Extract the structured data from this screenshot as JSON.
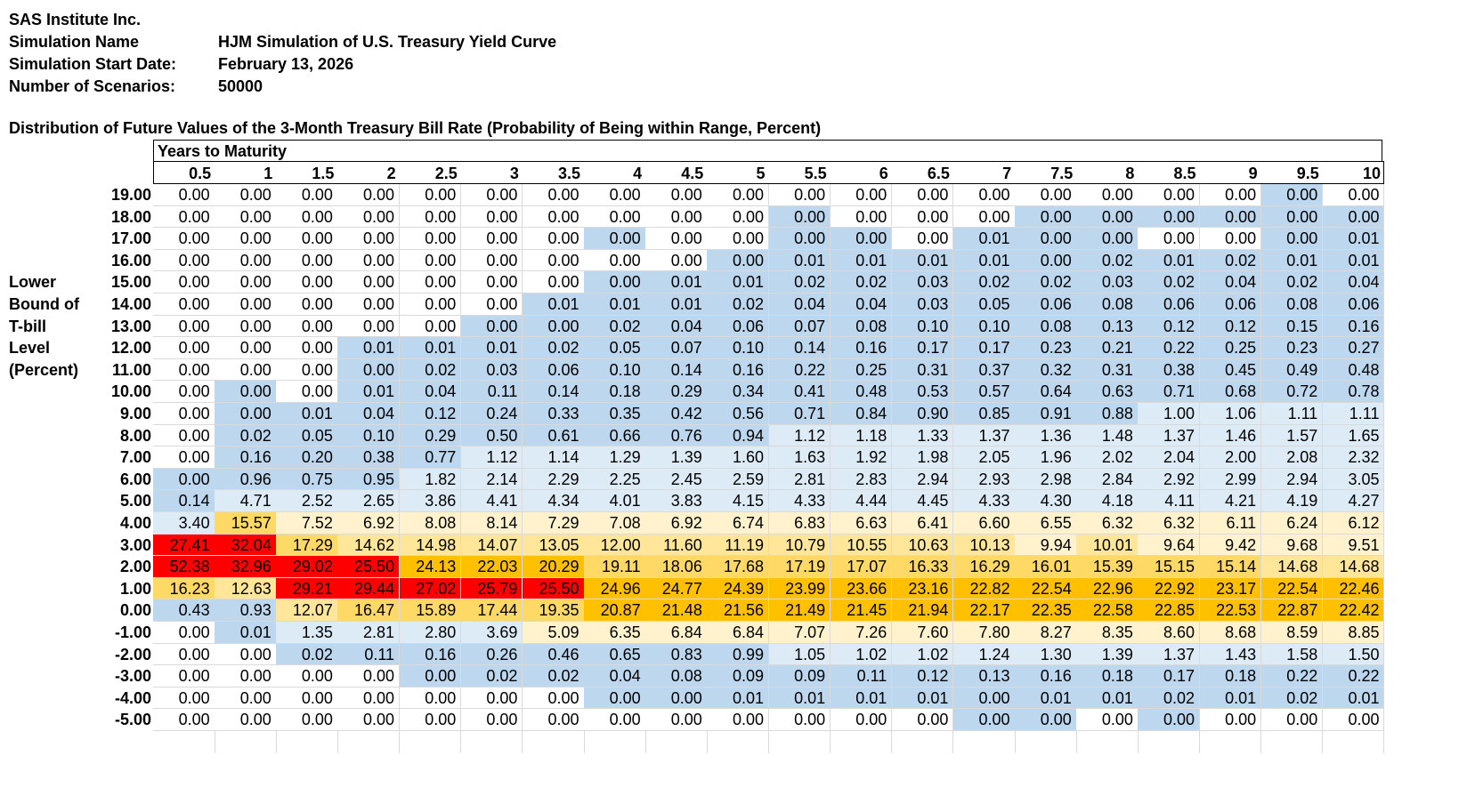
{
  "header": {
    "company": "SAS Institute Inc.",
    "fields": [
      {
        "label": "Simulation Name",
        "value": "HJM Simulation of U.S. Treasury Yield Curve"
      },
      {
        "label": "Simulation Start Date:",
        "value": "February 13, 2026"
      },
      {
        "label": "Number of Scenarios:",
        "value": "50000"
      }
    ]
  },
  "table": {
    "title": "Distribution of Future Values of the 3-Month Treasury Bill Rate (Probability of Being within Range, Percent)",
    "column_group_label": "Years to Maturity",
    "row_axis_label": [
      "Lower",
      "Bound of",
      "T-bill",
      "Level",
      "(Percent)"
    ],
    "columns": [
      "0.5",
      "1",
      "1.5",
      "2",
      "2.5",
      "3",
      "3.5",
      "4",
      "4.5",
      "5",
      "5.5",
      "6",
      "6.5",
      "7",
      "7.5",
      "8",
      "8.5",
      "9",
      "9.5",
      "10"
    ],
    "color_legend": {
      "W": "#ffffff",
      "B": "#bdd7ee",
      "P": "#ddebf7",
      "Y": "#fff2cc",
      "H": "#ffe699",
      "G": "#ffd966",
      "O": "#ffc000",
      "R": "#ff0000"
    },
    "rows": [
      {
        "label": "19.00",
        "values": [
          "0.00",
          "0.00",
          "0.00",
          "0.00",
          "0.00",
          "0.00",
          "0.00",
          "0.00",
          "0.00",
          "0.00",
          "0.00",
          "0.00",
          "0.00",
          "0.00",
          "0.00",
          "0.00",
          "0.00",
          "0.00",
          "0.00",
          "0.00"
        ],
        "colors": "WWWWWWWWWWWWWWWWWWBW"
      },
      {
        "label": "18.00",
        "values": [
          "0.00",
          "0.00",
          "0.00",
          "0.00",
          "0.00",
          "0.00",
          "0.00",
          "0.00",
          "0.00",
          "0.00",
          "0.00",
          "0.00",
          "0.00",
          "0.00",
          "0.00",
          "0.00",
          "0.00",
          "0.00",
          "0.00",
          "0.00"
        ],
        "colors": "WWWWWWWWWWBWWWBBBBBB"
      },
      {
        "label": "17.00",
        "values": [
          "0.00",
          "0.00",
          "0.00",
          "0.00",
          "0.00",
          "0.00",
          "0.00",
          "0.00",
          "0.00",
          "0.00",
          "0.00",
          "0.00",
          "0.00",
          "0.01",
          "0.00",
          "0.00",
          "0.00",
          "0.00",
          "0.00",
          "0.01"
        ],
        "colors": "WWWWWWWBWWBBWBBBWWBB"
      },
      {
        "label": "16.00",
        "values": [
          "0.00",
          "0.00",
          "0.00",
          "0.00",
          "0.00",
          "0.00",
          "0.00",
          "0.00",
          "0.00",
          "0.00",
          "0.01",
          "0.01",
          "0.01",
          "0.01",
          "0.00",
          "0.02",
          "0.01",
          "0.02",
          "0.01",
          "0.01"
        ],
        "colors": "WWWWWWWWWBBBBBBBBBBB"
      },
      {
        "label": "15.00",
        "values": [
          "0.00",
          "0.00",
          "0.00",
          "0.00",
          "0.00",
          "0.00",
          "0.00",
          "0.00",
          "0.01",
          "0.01",
          "0.02",
          "0.02",
          "0.03",
          "0.02",
          "0.02",
          "0.03",
          "0.02",
          "0.04",
          "0.02",
          "0.04"
        ],
        "colors": "WWWWWWWBBBBBBBBBBBBB"
      },
      {
        "label": "14.00",
        "values": [
          "0.00",
          "0.00",
          "0.00",
          "0.00",
          "0.00",
          "0.00",
          "0.01",
          "0.01",
          "0.01",
          "0.02",
          "0.04",
          "0.04",
          "0.03",
          "0.05",
          "0.06",
          "0.08",
          "0.06",
          "0.06",
          "0.08",
          "0.06"
        ],
        "colors": "WWWWWWBBBBBBBBBBBBBB"
      },
      {
        "label": "13.00",
        "values": [
          "0.00",
          "0.00",
          "0.00",
          "0.00",
          "0.00",
          "0.00",
          "0.00",
          "0.02",
          "0.04",
          "0.06",
          "0.07",
          "0.08",
          "0.10",
          "0.10",
          "0.08",
          "0.13",
          "0.12",
          "0.12",
          "0.15",
          "0.16"
        ],
        "colors": "WWWWWBBBBBBBBBBBBBBB"
      },
      {
        "label": "12.00",
        "values": [
          "0.00",
          "0.00",
          "0.00",
          "0.01",
          "0.01",
          "0.01",
          "0.02",
          "0.05",
          "0.07",
          "0.10",
          "0.14",
          "0.16",
          "0.17",
          "0.17",
          "0.23",
          "0.21",
          "0.22",
          "0.25",
          "0.23",
          "0.27"
        ],
        "colors": "WWWBBBBBBBBBBBBBBBBB"
      },
      {
        "label": "11.00",
        "values": [
          "0.00",
          "0.00",
          "0.00",
          "0.00",
          "0.02",
          "0.03",
          "0.06",
          "0.10",
          "0.14",
          "0.16",
          "0.22",
          "0.25",
          "0.31",
          "0.37",
          "0.32",
          "0.31",
          "0.38",
          "0.45",
          "0.49",
          "0.48"
        ],
        "colors": "WWWBBBBBBBBBBBBBBBBB"
      },
      {
        "label": "10.00",
        "values": [
          "0.00",
          "0.00",
          "0.00",
          "0.01",
          "0.04",
          "0.11",
          "0.14",
          "0.18",
          "0.29",
          "0.34",
          "0.41",
          "0.48",
          "0.53",
          "0.57",
          "0.64",
          "0.63",
          "0.71",
          "0.68",
          "0.72",
          "0.78"
        ],
        "colors": "WBWBBBBBBBBBBBBBBBBB"
      },
      {
        "label": "9.00",
        "values": [
          "0.00",
          "0.00",
          "0.01",
          "0.04",
          "0.12",
          "0.24",
          "0.33",
          "0.35",
          "0.42",
          "0.56",
          "0.71",
          "0.84",
          "0.90",
          "0.85",
          "0.91",
          "0.88",
          "1.00",
          "1.06",
          "1.11",
          "1.11"
        ],
        "colors": "WBBBBBBBBBBBBBBBPPPP"
      },
      {
        "label": "8.00",
        "values": [
          "0.00",
          "0.02",
          "0.05",
          "0.10",
          "0.29",
          "0.50",
          "0.61",
          "0.66",
          "0.76",
          "0.94",
          "1.12",
          "1.18",
          "1.33",
          "1.37",
          "1.36",
          "1.48",
          "1.37",
          "1.46",
          "1.57",
          "1.65"
        ],
        "colors": "WBBBBBBBBBPPPPPPPPPP"
      },
      {
        "label": "7.00",
        "values": [
          "0.00",
          "0.16",
          "0.20",
          "0.38",
          "0.77",
          "1.12",
          "1.14",
          "1.29",
          "1.39",
          "1.60",
          "1.63",
          "1.92",
          "1.98",
          "2.05",
          "1.96",
          "2.02",
          "2.04",
          "2.00",
          "2.08",
          "2.32"
        ],
        "colors": "WBBBBPPPPPPPPPPPPPPP"
      },
      {
        "label": "6.00",
        "values": [
          "0.00",
          "0.96",
          "0.75",
          "0.95",
          "1.82",
          "2.14",
          "2.29",
          "2.25",
          "2.45",
          "2.59",
          "2.81",
          "2.83",
          "2.94",
          "2.93",
          "2.98",
          "2.84",
          "2.92",
          "2.99",
          "2.94",
          "3.05"
        ],
        "colors": "BBBBPPPPPPPPPPPPPPPP"
      },
      {
        "label": "5.00",
        "values": [
          "0.14",
          "4.71",
          "2.52",
          "2.65",
          "3.86",
          "4.41",
          "4.34",
          "4.01",
          "3.83",
          "4.15",
          "4.33",
          "4.44",
          "4.45",
          "4.33",
          "4.30",
          "4.18",
          "4.11",
          "4.21",
          "4.19",
          "4.27"
        ],
        "colors": "BPPPPPPPPPPPPPPPPPPP"
      },
      {
        "label": "4.00",
        "values": [
          "3.40",
          "15.57",
          "7.52",
          "6.92",
          "8.08",
          "8.14",
          "7.29",
          "7.08",
          "6.92",
          "6.74",
          "6.83",
          "6.63",
          "6.41",
          "6.60",
          "6.55",
          "6.32",
          "6.32",
          "6.11",
          "6.24",
          "6.12"
        ],
        "colors": "PGYYYYYYYYYYYYYYYYYY"
      },
      {
        "label": "3.00",
        "values": [
          "27.41",
          "32.04",
          "17.29",
          "14.62",
          "14.98",
          "14.07",
          "13.05",
          "12.00",
          "11.60",
          "11.19",
          "10.79",
          "10.55",
          "10.63",
          "10.13",
          "9.94",
          "10.01",
          "9.64",
          "9.42",
          "9.68",
          "9.51"
        ],
        "colors": "RRGHHHHHHHHHHHYHYYYY"
      },
      {
        "label": "2.00",
        "values": [
          "52.38",
          "32.96",
          "29.02",
          "25.50",
          "24.13",
          "22.03",
          "20.29",
          "19.11",
          "18.06",
          "17.68",
          "17.19",
          "17.07",
          "16.33",
          "16.29",
          "16.01",
          "15.39",
          "15.15",
          "15.14",
          "14.68",
          "14.68"
        ],
        "colors": "RRRROOOGGGGGGGGGGGHH"
      },
      {
        "label": "1.00",
        "values": [
          "16.23",
          "12.63",
          "29.21",
          "29.44",
          "27.02",
          "25.79",
          "25.50",
          "24.96",
          "24.77",
          "24.39",
          "23.99",
          "23.66",
          "23.16",
          "22.82",
          "22.54",
          "22.96",
          "22.92",
          "23.17",
          "22.54",
          "22.46"
        ],
        "colors": "GHRRRRROOOOOOOOOOOOO"
      },
      {
        "label": "0.00",
        "values": [
          "0.43",
          "0.93",
          "12.07",
          "16.47",
          "15.89",
          "17.44",
          "19.35",
          "20.87",
          "21.48",
          "21.56",
          "21.49",
          "21.45",
          "21.94",
          "22.17",
          "22.35",
          "22.58",
          "22.85",
          "22.53",
          "22.87",
          "22.42"
        ],
        "colors": "BBHGGGGOOOOOOOOOOOOO"
      },
      {
        "label": "-1.00",
        "values": [
          "0.00",
          "0.01",
          "1.35",
          "2.81",
          "2.80",
          "3.69",
          "5.09",
          "6.35",
          "6.84",
          "6.84",
          "7.07",
          "7.26",
          "7.60",
          "7.80",
          "8.27",
          "8.35",
          "8.60",
          "8.68",
          "8.59",
          "8.85"
        ],
        "colors": "WBPPPPYYYYYYYYYYYYYY"
      },
      {
        "label": "-2.00",
        "values": [
          "0.00",
          "0.00",
          "0.02",
          "0.11",
          "0.16",
          "0.26",
          "0.46",
          "0.65",
          "0.83",
          "0.99",
          "1.05",
          "1.02",
          "1.02",
          "1.24",
          "1.30",
          "1.39",
          "1.37",
          "1.43",
          "1.58",
          "1.50"
        ],
        "colors": "WWBBBBBBBBPPPPPPPPPP"
      },
      {
        "label": "-3.00",
        "values": [
          "0.00",
          "0.00",
          "0.00",
          "0.00",
          "0.00",
          "0.02",
          "0.02",
          "0.04",
          "0.08",
          "0.09",
          "0.09",
          "0.11",
          "0.12",
          "0.13",
          "0.16",
          "0.18",
          "0.17",
          "0.18",
          "0.22",
          "0.22"
        ],
        "colors": "WWWWBBBBBBBBBBBBBBBB"
      },
      {
        "label": "-4.00",
        "values": [
          "0.00",
          "0.00",
          "0.00",
          "0.00",
          "0.00",
          "0.00",
          "0.00",
          "0.00",
          "0.00",
          "0.01",
          "0.01",
          "0.01",
          "0.01",
          "0.00",
          "0.01",
          "0.01",
          "0.02",
          "0.01",
          "0.02",
          "0.01"
        ],
        "colors": "WWWWWWWBBBBBBBBBBBBB"
      },
      {
        "label": "-5.00",
        "values": [
          "0.00",
          "0.00",
          "0.00",
          "0.00",
          "0.00",
          "0.00",
          "0.00",
          "0.00",
          "0.00",
          "0.00",
          "0.00",
          "0.00",
          "0.00",
          "0.00",
          "0.00",
          "0.00",
          "0.00",
          "0.00",
          "0.00",
          "0.00"
        ],
        "colors": "WWWWWWWWWWWWWBBWBWWW"
      }
    ]
  }
}
